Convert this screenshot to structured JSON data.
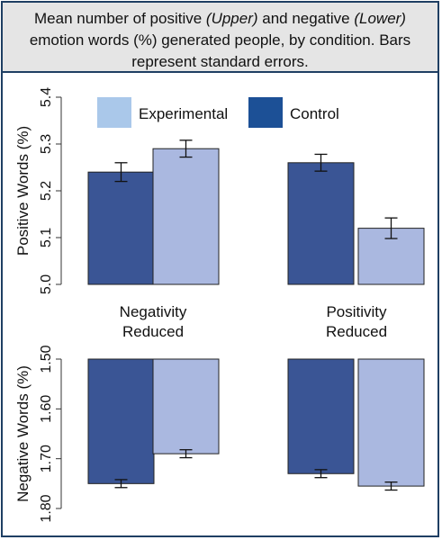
{
  "caption": {
    "part1": "Mean number of positive ",
    "upper": "(Upper)",
    "part2": " and negative ",
    "lower": "(Lower)",
    "part3": " emotion words (%) generated people, by condition. Bars represent standard errors."
  },
  "chart_data": [
    {
      "type": "bar",
      "panel": "upper",
      "ylabel": "Positive Words (%)",
      "ylim": [
        5.0,
        5.4
      ],
      "yticks": [
        "5.0",
        "5.1",
        "5.2",
        "5.3",
        "5.4"
      ],
      "categories": [
        "Negativity Reduced",
        "Positivity Reduced"
      ],
      "series": [
        {
          "name": "Control",
          "color": "#3a5595",
          "values": [
            5.24,
            5.26
          ],
          "errors": [
            0.02,
            0.018
          ]
        },
        {
          "name": "Experimental",
          "color": "#aab8e0",
          "values": [
            5.29,
            5.12
          ],
          "errors": [
            0.018,
            0.022
          ]
        }
      ],
      "legend": {
        "position": "top",
        "entries": [
          "Experimental",
          "Control"
        ],
        "colors": [
          "#aac8ea",
          "#1c5096"
        ]
      }
    },
    {
      "type": "bar",
      "panel": "lower",
      "ylabel": "Negative Words (%)",
      "ylim": [
        1.5,
        1.8
      ],
      "y_inverted": true,
      "yticks": [
        "1.50",
        "1.60",
        "1.70",
        "1.80"
      ],
      "categories": [
        "Negativity Reduced",
        "Positivity Reduced"
      ],
      "category_labels": [
        [
          "Negativity",
          "Reduced"
        ],
        [
          "Positivity",
          "Reduced"
        ]
      ],
      "series": [
        {
          "name": "Control",
          "color": "#3a5595",
          "values": [
            1.75,
            1.73
          ],
          "errors": [
            0.008,
            0.008
          ]
        },
        {
          "name": "Experimental",
          "color": "#aab8e0",
          "values": [
            1.69,
            1.755
          ],
          "errors": [
            0.008,
            0.008
          ]
        }
      ]
    }
  ]
}
